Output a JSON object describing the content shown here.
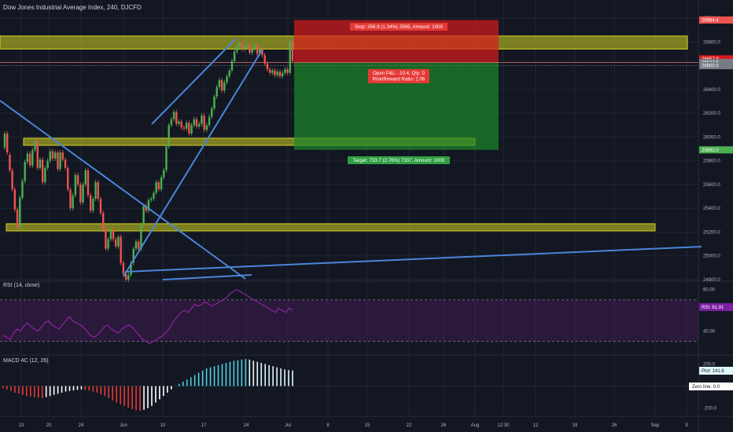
{
  "chart_title": "Dow Jones Industrial Average Index, 240, DJCFD",
  "colors": {
    "background": "#131722",
    "up": "#4caf50",
    "down": "#ef5350",
    "zone": "#d3d322",
    "trendline": "#4a86d8",
    "stop_zone": "#d81b1b",
    "target_zone": "#1b8a2a",
    "rsi": "#9c27b0",
    "macd_up": "#4dd0e1",
    "macd_down": "#e53935"
  },
  "chart_data": [
    {
      "type": "candlestick",
      "title": "Dow Jones Industrial Average Index, 240, DJCFD",
      "x_tick_labels": [
        "13",
        "20",
        "24",
        "Jun",
        "10",
        "17",
        "24",
        "Jul",
        "8",
        "15",
        "22",
        "26",
        "Aug",
        "12:30",
        "12",
        "19",
        "26",
        "Sep",
        "9"
      ],
      "y_tick_labels": [
        "27000.0",
        "26800.0",
        "26600.0",
        "26400.0",
        "26200.0",
        "26000.0",
        "25800.0",
        "25600.0",
        "25400.0",
        "25200.0",
        "25000.0",
        "24800.0"
      ],
      "ylim": [
        24800,
        27100
      ],
      "price_labels": [
        {
          "text": "26984.4",
          "value": 26984.4,
          "color": "#ef5350"
        },
        {
          "text": "26657.9",
          "value": 26657.9,
          "color": "#d81b1b"
        },
        {
          "text": "26627.5",
          "value": 26627.5,
          "color": "#787b86"
        },
        {
          "text": "26600.0",
          "value": 26600.0,
          "color": "#787b86"
        },
        {
          "text": "25892.0",
          "value": 25892.0,
          "color": "#4caf50"
        }
      ],
      "candles": [
        [
          25910,
          26030
        ],
        [
          26030,
          25870
        ],
        [
          25850,
          25720
        ],
        [
          25720,
          25560
        ],
        [
          25560,
          25390
        ],
        [
          25390,
          25240
        ],
        [
          25240,
          25490
        ],
        [
          25490,
          25630
        ],
        [
          25630,
          25790
        ],
        [
          25790,
          25860
        ],
        [
          25860,
          25760
        ],
        [
          25760,
          25890
        ],
        [
          25890,
          25960
        ],
        [
          25960,
          25740
        ],
        [
          25740,
          25810
        ],
        [
          25810,
          25620
        ],
        [
          25620,
          25740
        ],
        [
          25740,
          25800
        ],
        [
          25800,
          25880
        ],
        [
          25880,
          25820
        ],
        [
          25820,
          25870
        ],
        [
          25870,
          25730
        ],
        [
          25730,
          25870
        ],
        [
          25870,
          25810
        ],
        [
          25810,
          25740
        ],
        [
          25740,
          25560
        ],
        [
          25560,
          25400
        ],
        [
          25400,
          25510
        ],
        [
          25510,
          25680
        ],
        [
          25680,
          25600
        ],
        [
          25600,
          25450
        ],
        [
          25450,
          25600
        ],
        [
          25600,
          25720
        ],
        [
          25720,
          25510
        ],
        [
          25510,
          25380
        ],
        [
          25380,
          25480
        ],
        [
          25480,
          25620
        ],
        [
          25620,
          25480
        ],
        [
          25480,
          25360
        ],
        [
          25360,
          25220
        ],
        [
          25220,
          25060
        ],
        [
          25060,
          25140
        ],
        [
          25140,
          25220
        ],
        [
          25220,
          25140
        ],
        [
          25140,
          25080
        ],
        [
          25080,
          25160
        ],
        [
          25160,
          24940
        ],
        [
          24940,
          24850
        ],
        [
          24850,
          24800
        ],
        [
          24800,
          24840
        ],
        [
          24840,
          24940
        ],
        [
          24940,
          25060
        ],
        [
          25060,
          25120
        ],
        [
          25120,
          25060
        ],
        [
          25060,
          25260
        ],
        [
          25260,
          25420
        ],
        [
          25420,
          25380
        ],
        [
          25380,
          25470
        ],
        [
          25470,
          25480
        ],
        [
          25480,
          25530
        ],
        [
          25530,
          25620
        ],
        [
          25620,
          25560
        ],
        [
          25560,
          25660
        ],
        [
          25660,
          25720
        ],
        [
          25720,
          25920
        ],
        [
          25920,
          26100
        ],
        [
          26100,
          26150
        ],
        [
          26150,
          26210
        ],
        [
          26210,
          26110
        ],
        [
          26110,
          26130
        ],
        [
          26130,
          26080
        ],
        [
          26080,
          26070
        ],
        [
          26070,
          26120
        ],
        [
          26120,
          26030
        ],
        [
          26030,
          26100
        ],
        [
          26100,
          26150
        ],
        [
          26150,
          26090
        ],
        [
          26090,
          26110
        ],
        [
          26110,
          26180
        ],
        [
          26180,
          26060
        ],
        [
          26060,
          26100
        ],
        [
          26100,
          26170
        ],
        [
          26170,
          26240
        ],
        [
          26240,
          26340
        ],
        [
          26340,
          26420
        ],
        [
          26420,
          26480
        ],
        [
          26480,
          26390
        ],
        [
          26390,
          26460
        ],
        [
          26460,
          26510
        ],
        [
          26510,
          26560
        ],
        [
          26560,
          26640
        ],
        [
          26640,
          26720
        ],
        [
          26720,
          26760
        ],
        [
          26760,
          26790
        ],
        [
          26790,
          26740
        ],
        [
          26740,
          26760
        ],
        [
          26760,
          26770
        ],
        [
          26770,
          26710
        ],
        [
          26710,
          26740
        ],
        [
          26740,
          26770
        ],
        [
          26770,
          26700
        ],
        [
          26700,
          26740
        ],
        [
          26740,
          26690
        ],
        [
          26690,
          26620
        ],
        [
          26620,
          26570
        ],
        [
          26570,
          26540
        ],
        [
          26540,
          26560
        ],
        [
          26560,
          26520
        ],
        [
          26520,
          26550
        ],
        [
          26550,
          26510
        ],
        [
          26510,
          26540
        ],
        [
          26540,
          26570
        ],
        [
          26570,
          26540
        ],
        [
          26540,
          26800
        ],
        [
          26800,
          26640
        ]
      ],
      "zones": [
        {
          "from": 26740,
          "to": 26850
        },
        {
          "from": 25930,
          "to": 25990
        },
        {
          "from": 25210,
          "to": 25270
        }
      ],
      "position": {
        "entry": 26627.5,
        "stop": 26984.4,
        "target": 25892.0,
        "stop_label": "Stop: 356.9 (1.34%) 3569, Amount: 1000",
        "target_label": "Target: 733.7 (2.76%) 7337, Amount: 1000",
        "pnl_label": "Open P&L: -10.4, Qty: 0",
        "rr_label": "Risk/Reward Ratio: 2.06"
      }
    },
    {
      "type": "line",
      "title": "RSI (14, close)",
      "y_tick_labels": [
        "80.00",
        "40.00"
      ],
      "ylim": [
        20,
        85
      ],
      "levels": [
        70,
        30
      ],
      "value_label": "RSI: 61.91",
      "series": [
        {
          "values": [
            36,
            34,
            32,
            38,
            42,
            40,
            45,
            48,
            44,
            42,
            40,
            44,
            48,
            50,
            46,
            44,
            42,
            46,
            50,
            54,
            50,
            48,
            46,
            44,
            40,
            36,
            34,
            36,
            40,
            44,
            46,
            42,
            40,
            38,
            42,
            44,
            46,
            44,
            40,
            36,
            32,
            30,
            28,
            30,
            32,
            34,
            36,
            40,
            44,
            50,
            54,
            58,
            60,
            58,
            62,
            66,
            64,
            66,
            68,
            66,
            64,
            66,
            68,
            70,
            72,
            76,
            78,
            80,
            78,
            76,
            74,
            72,
            70,
            68,
            66,
            64,
            62,
            60,
            58,
            62,
            60,
            58,
            62,
            60
          ]
        }
      ]
    },
    {
      "type": "bar",
      "title": "MACD 4C (12, 26)",
      "y_tick_labels": [
        "200.0",
        "-200.0"
      ],
      "ylim": [
        -260,
        260
      ],
      "plot_label": "Plot: 141.6",
      "zero_label": "Zero line: 0.0",
      "values": [
        -20,
        -30,
        -45,
        -60,
        -70,
        -80,
        -90,
        -95,
        -100,
        -105,
        -110,
        -100,
        -90,
        -80,
        -70,
        -60,
        -50,
        -45,
        -40,
        -35,
        -30,
        -35,
        -40,
        -50,
        -60,
        -75,
        -90,
        -110,
        -130,
        -150,
        -165,
        -180,
        -195,
        -210,
        -220,
        -225,
        -215,
        -200,
        -180,
        -150,
        -120,
        -90,
        -60,
        -30,
        0,
        20,
        40,
        60,
        80,
        100,
        120,
        140,
        160,
        170,
        180,
        190,
        200,
        210,
        220,
        230,
        235,
        240,
        245,
        240,
        230,
        220,
        210,
        200,
        190,
        180,
        170,
        160,
        150,
        145,
        142
      ]
    }
  ]
}
